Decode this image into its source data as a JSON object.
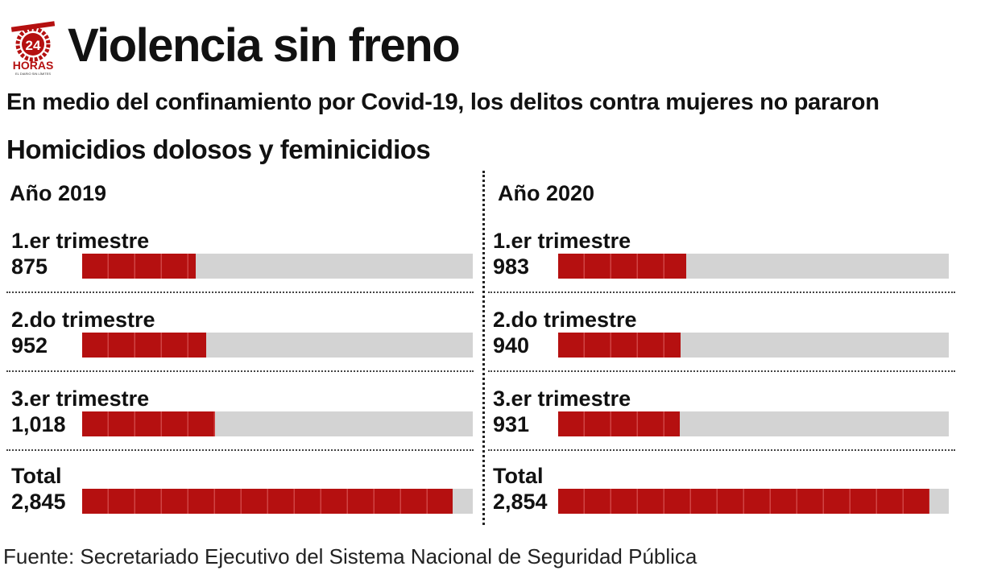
{
  "logo": {
    "number": "24",
    "brand": "HORAS",
    "tagline": "EL DIARIO SIN LÍMITES"
  },
  "header": {
    "title": "Violencia sin freno",
    "subtitle": "En medio del confinamiento por Covid-19, los delitos contra mujeres no pararon"
  },
  "chart_data": {
    "type": "bar",
    "title": "Homicidios dolosos y feminicidios",
    "colors": {
      "bar": "#b51010",
      "track": "#d3d3d3"
    },
    "xlim": [
      0,
      3000
    ],
    "panels": [
      {
        "name": "Año 2019",
        "categories": [
          "1.er trimestre",
          "2.do trimestre",
          "3.er trimestre",
          "Total"
        ],
        "values": [
          875,
          952,
          1018,
          2845
        ],
        "labels": [
          "875",
          "952",
          "1,018",
          "2,845"
        ]
      },
      {
        "name": "Año 2020",
        "categories": [
          "1.er trimestre",
          "2.do trimestre",
          "3.er trimestre",
          "Total"
        ],
        "values": [
          983,
          940,
          931,
          2854
        ],
        "labels": [
          "983",
          "940",
          "931",
          "2,854"
        ]
      }
    ]
  },
  "footer": {
    "source": "Fuente: Secretariado Ejecutivo del Sistema Nacional de Seguridad Pública"
  }
}
